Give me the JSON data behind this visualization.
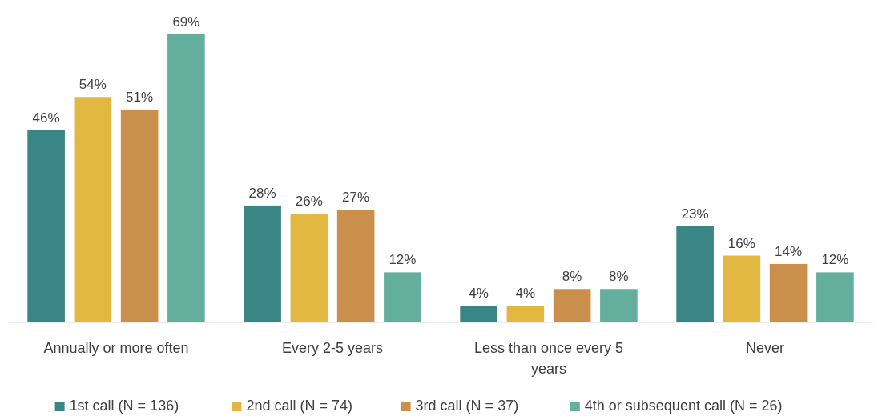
{
  "chart_data": {
    "type": "bar",
    "categories": [
      "Annually or more often",
      "Every 2-5 years",
      "Less than once every 5 years",
      "Never"
    ],
    "series": [
      {
        "name": "1st call (N = 136)",
        "color": "#3a8585",
        "values": [
          46,
          28,
          4,
          23
        ],
        "value_labels": [
          "46%",
          "28%",
          "4%",
          "23%"
        ]
      },
      {
        "name": "2nd call (N = 74)",
        "color": "#e2b842",
        "values": [
          54,
          26,
          4,
          16
        ],
        "value_labels": [
          "54%",
          "26%",
          "4%",
          "16%"
        ]
      },
      {
        "name": "3rd call (N = 37)",
        "color": "#c98f4b",
        "values": [
          51,
          27,
          8,
          14
        ],
        "value_labels": [
          "51%",
          "27%",
          "8%",
          "14%"
        ]
      },
      {
        "name": "4th or subsequent call (N = 26)",
        "color": "#64ae9e",
        "values": [
          69,
          12,
          8,
          12
        ],
        "value_labels": [
          "69%",
          "12%",
          "8%",
          "12%"
        ]
      }
    ],
    "legend": "bottom"
  }
}
